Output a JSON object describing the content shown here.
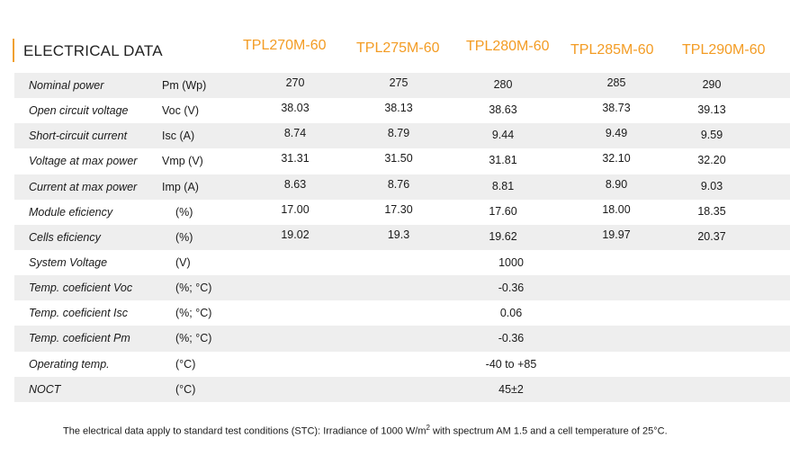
{
  "section_title": "ELECTRICAL DATA",
  "accent_color": "#f39c24",
  "models": [
    "TPL270M-60",
    "TPL275M-60",
    "TPL280M-60",
    "TPL285M-60",
    "TPL290M-60"
  ],
  "rows": [
    {
      "label": "Nominal power",
      "unit": "Pm (Wp)",
      "values": [
        "270",
        "275",
        "280",
        "285",
        "290"
      ]
    },
    {
      "label": "Open circuit voltage",
      "unit": "Voc (V)",
      "values": [
        "38.03",
        "38.13",
        "38.63",
        "38.73",
        "39.13"
      ]
    },
    {
      "label": "Short-circuit current",
      "unit": "Isc (A)",
      "values": [
        "8.74",
        "8.79",
        "9.44",
        "9.49",
        "9.59"
      ]
    },
    {
      "label": "Voltage at max power",
      "unit": "Vmp (V)",
      "values": [
        "31.31",
        "31.50",
        "31.81",
        "32.10",
        "32.20"
      ]
    },
    {
      "label": "Current at max power",
      "unit": "Imp (A)",
      "values": [
        "8.63",
        "8.76",
        "8.81",
        "8.90",
        "9.03"
      ]
    },
    {
      "label": "Module eficiency",
      "unit": "(%)",
      "values": [
        "17.00",
        "17.30",
        "17.60",
        "18.00",
        "18.35"
      ]
    },
    {
      "label": "Cells eficiency",
      "unit": "(%)",
      "values": [
        "19.02",
        "19.3",
        "19.62",
        "19.97",
        "20.37"
      ]
    },
    {
      "label": "System Voltage",
      "unit": "(V)",
      "span_value": "1000"
    },
    {
      "label": "Temp. coeficient Voc",
      "unit": "(%; °C)",
      "span_value": "-0.36"
    },
    {
      "label": "Temp. coeficient Isc",
      "unit": "(%; °C)",
      "span_value": "0.06"
    },
    {
      "label": "Temp. coeficient Pm",
      "unit": "(%; °C)",
      "span_value": "-0.36"
    },
    {
      "label": "Operating temp.",
      "unit": "(°C)",
      "span_value": "-40 to +85"
    },
    {
      "label": "NOCT",
      "unit": "(°C)",
      "span_value": "45±2"
    }
  ],
  "footnote": {
    "before": "The electrical data apply to standard test conditions (STC): Irradiance of 1000 W/m",
    "superscript": "2",
    "after": " with spectrum AM 1.5 and a cell temperature of 25°C."
  }
}
